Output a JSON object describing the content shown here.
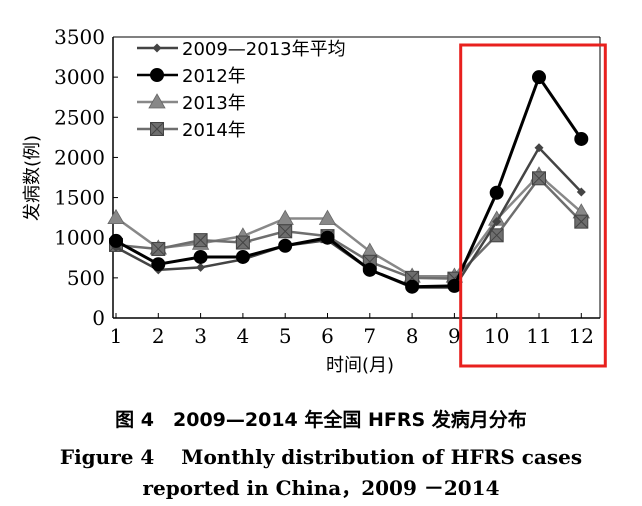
{
  "chart_data": {
    "type": "line",
    "ylabel": "发病数(例)",
    "xlabel": "时间(月)",
    "categories": [
      "1",
      "2",
      "3",
      "4",
      "5",
      "6",
      "7",
      "8",
      "9",
      "10",
      "11",
      "12"
    ],
    "yticks": [
      "0",
      "500",
      "1000",
      "1500",
      "2000",
      "2500",
      "3000",
      "3500"
    ],
    "ylim": [
      0,
      3500
    ],
    "grid": false,
    "legend_position": "top-left",
    "series": [
      {
        "name": "2009—2013年平均",
        "marker": "diamond",
        "color": "#444444",
        "values": [
          880,
          600,
          630,
          730,
          900,
          970,
          600,
          380,
          380,
          1200,
          2120,
          1570
        ]
      },
      {
        "name": "2012年",
        "marker": "circle",
        "color": "#000000",
        "values": [
          960,
          670,
          760,
          760,
          900,
          1000,
          600,
          390,
          400,
          1560,
          3000,
          2230
        ]
      },
      {
        "name": "2013年",
        "marker": "triangle",
        "color": "#888888",
        "values": [
          1250,
          870,
          930,
          1020,
          1240,
          1240,
          830,
          520,
          520,
          1230,
          1780,
          1320
        ]
      },
      {
        "name": "2014年",
        "marker": "square-x",
        "color": "#6e6e6e",
        "values": [
          910,
          860,
          970,
          940,
          1080,
          1020,
          700,
          500,
          490,
          1030,
          1740,
          1200
        ]
      }
    ],
    "highlight": {
      "from_category": "10",
      "to_category": "12",
      "color": "#e8201e"
    }
  },
  "caption": {
    "cn": "图 4　2009—2014 年全国 HFRS 发病月分布",
    "en_line1": "Figure 4　 Monthly distribution of HFRS cases",
    "en_line2": "reported in China，2009 －2014"
  }
}
